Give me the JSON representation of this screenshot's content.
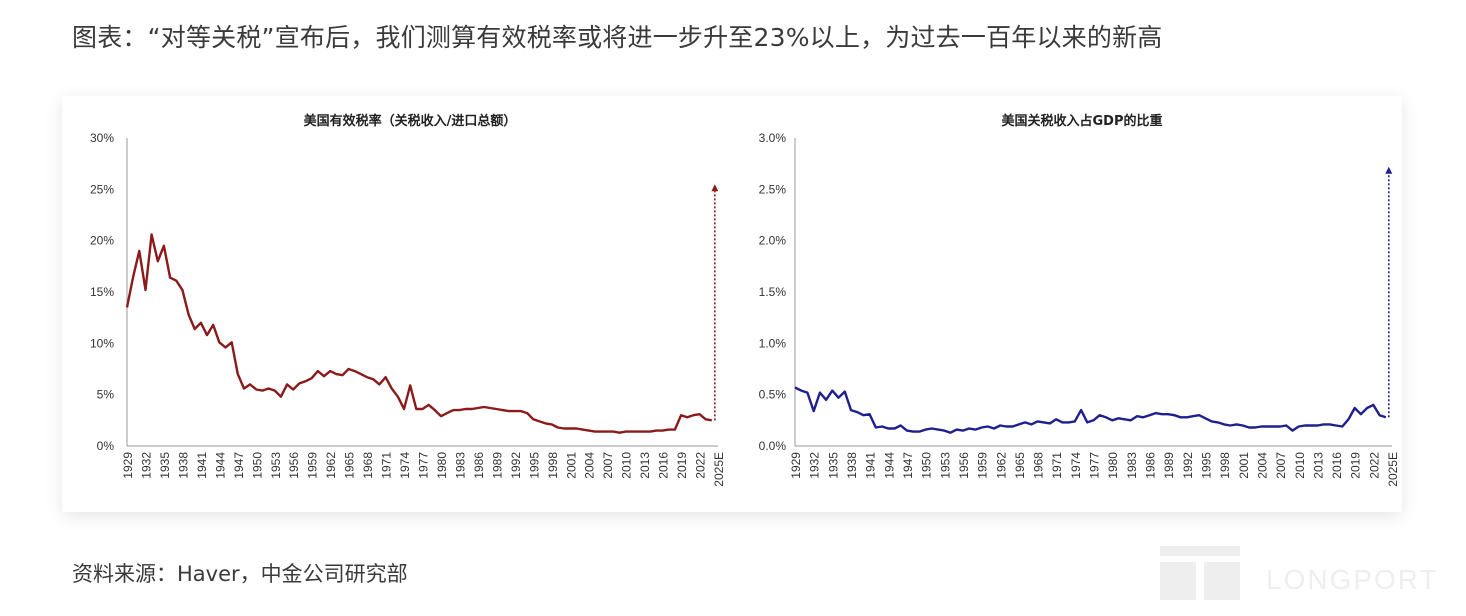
{
  "headline": "图表：“对等关税”宣布后，我们测算有效税率或将进一步升至23%以上，为过去一百年以来的新高",
  "source": "资料来源：Haver，中金公司研究部",
  "watermark_text": "LONGPORT",
  "chart_data": [
    {
      "type": "line",
      "title": "美国有效税率（关税收入/进口总额）",
      "color": "#8b1a1a",
      "ylim": [
        0,
        30
      ],
      "y_ticks": [
        "0%",
        "5%",
        "10%",
        "15%",
        "20%",
        "25%",
        "30%"
      ],
      "x_labels": [
        "1929",
        "1932",
        "1935",
        "1938",
        "1941",
        "1944",
        "1947",
        "1950",
        "1953",
        "1956",
        "1959",
        "1962",
        "1965",
        "1968",
        "1971",
        "1974",
        "1977",
        "1980",
        "1983",
        "1986",
        "1989",
        "1992",
        "1995",
        "1998",
        "2001",
        "2004",
        "2007",
        "2010",
        "2013",
        "2016",
        "2019",
        "2022",
        "2025E"
      ],
      "x": [
        1929,
        1930,
        1931,
        1932,
        1933,
        1934,
        1935,
        1936,
        1937,
        1938,
        1939,
        1940,
        1941,
        1942,
        1943,
        1944,
        1945,
        1946,
        1947,
        1948,
        1949,
        1950,
        1951,
        1952,
        1953,
        1954,
        1955,
        1956,
        1957,
        1958,
        1959,
        1960,
        1961,
        1962,
        1963,
        1964,
        1965,
        1966,
        1967,
        1968,
        1969,
        1970,
        1971,
        1972,
        1973,
        1974,
        1975,
        1976,
        1977,
        1978,
        1979,
        1980,
        1981,
        1982,
        1983,
        1984,
        1985,
        1986,
        1987,
        1988,
        1989,
        1990,
        1991,
        1992,
        1993,
        1994,
        1995,
        1996,
        1997,
        1998,
        1999,
        2000,
        2001,
        2002,
        2003,
        2004,
        2005,
        2006,
        2007,
        2008,
        2009,
        2010,
        2011,
        2012,
        2013,
        2014,
        2015,
        2016,
        2017,
        2018,
        2019,
        2020,
        2021,
        2022,
        2023,
        2024
      ],
      "values": [
        13.5,
        16.5,
        19.0,
        15.2,
        20.6,
        18.0,
        19.5,
        16.4,
        16.1,
        15.2,
        12.8,
        11.4,
        12.0,
        10.8,
        11.8,
        10.1,
        9.6,
        10.1,
        7.0,
        5.6,
        6.0,
        5.5,
        5.4,
        5.6,
        5.4,
        4.8,
        6.0,
        5.5,
        6.1,
        6.3,
        6.6,
        7.3,
        6.8,
        7.3,
        7.0,
        6.9,
        7.5,
        7.3,
        7.0,
        6.7,
        6.5,
        6.0,
        6.7,
        5.6,
        4.8,
        3.6,
        5.9,
        3.6,
        3.6,
        4.0,
        3.5,
        2.9,
        3.2,
        3.5,
        3.5,
        3.6,
        3.6,
        3.7,
        3.8,
        3.7,
        3.6,
        3.5,
        3.4,
        3.4,
        3.4,
        3.2,
        2.6,
        2.4,
        2.2,
        2.1,
        1.8,
        1.7,
        1.7,
        1.7,
        1.6,
        1.5,
        1.4,
        1.4,
        1.4,
        1.4,
        1.3,
        1.4,
        1.4,
        1.4,
        1.4,
        1.4,
        1.5,
        1.5,
        1.6,
        1.6,
        3.0,
        2.8,
        3.0,
        3.1,
        2.6,
        2.5
      ],
      "projection": {
        "label": "2025E",
        "value": 25.5
      }
    },
    {
      "type": "line",
      "title": "美国关税收入占GDP的比重",
      "color": "#1f1f8f",
      "ylim": [
        0,
        3
      ],
      "y_ticks": [
        "0.0%",
        "0.5%",
        "1.0%",
        "1.5%",
        "2.0%",
        "2.5%",
        "3.0%"
      ],
      "x_labels": [
        "1929",
        "1932",
        "1935",
        "1938",
        "1941",
        "1944",
        "1947",
        "1950",
        "1953",
        "1956",
        "1959",
        "1962",
        "1965",
        "1968",
        "1971",
        "1974",
        "1977",
        "1980",
        "1983",
        "1986",
        "1989",
        "1992",
        "1995",
        "1998",
        "2001",
        "2004",
        "2007",
        "2010",
        "2013",
        "2016",
        "2019",
        "2022",
        "2025E"
      ],
      "x": [
        1929,
        1930,
        1931,
        1932,
        1933,
        1934,
        1935,
        1936,
        1937,
        1938,
        1939,
        1940,
        1941,
        1942,
        1943,
        1944,
        1945,
        1946,
        1947,
        1948,
        1949,
        1950,
        1951,
        1952,
        1953,
        1954,
        1955,
        1956,
        1957,
        1958,
        1959,
        1960,
        1961,
        1962,
        1963,
        1964,
        1965,
        1966,
        1967,
        1968,
        1969,
        1970,
        1971,
        1972,
        1973,
        1974,
        1975,
        1976,
        1977,
        1978,
        1979,
        1980,
        1981,
        1982,
        1983,
        1984,
        1985,
        1986,
        1987,
        1988,
        1989,
        1990,
        1991,
        1992,
        1993,
        1994,
        1995,
        1996,
        1997,
        1998,
        1999,
        2000,
        2001,
        2002,
        2003,
        2004,
        2005,
        2006,
        2007,
        2008,
        2009,
        2010,
        2011,
        2012,
        2013,
        2014,
        2015,
        2016,
        2017,
        2018,
        2019,
        2020,
        2021,
        2022,
        2023,
        2024
      ],
      "values": [
        0.57,
        0.54,
        0.52,
        0.34,
        0.52,
        0.45,
        0.54,
        0.47,
        0.53,
        0.35,
        0.33,
        0.3,
        0.31,
        0.18,
        0.19,
        0.17,
        0.17,
        0.2,
        0.15,
        0.14,
        0.14,
        0.16,
        0.17,
        0.16,
        0.15,
        0.13,
        0.16,
        0.15,
        0.17,
        0.16,
        0.18,
        0.19,
        0.17,
        0.2,
        0.19,
        0.19,
        0.21,
        0.23,
        0.21,
        0.24,
        0.23,
        0.22,
        0.26,
        0.23,
        0.23,
        0.24,
        0.35,
        0.23,
        0.25,
        0.3,
        0.28,
        0.25,
        0.27,
        0.26,
        0.25,
        0.29,
        0.28,
        0.3,
        0.32,
        0.31,
        0.31,
        0.3,
        0.28,
        0.28,
        0.29,
        0.3,
        0.27,
        0.24,
        0.23,
        0.21,
        0.2,
        0.21,
        0.2,
        0.18,
        0.18,
        0.19,
        0.19,
        0.19,
        0.19,
        0.2,
        0.15,
        0.19,
        0.2,
        0.2,
        0.2,
        0.21,
        0.21,
        0.2,
        0.19,
        0.26,
        0.37,
        0.31,
        0.37,
        0.4,
        0.3,
        0.28
      ],
      "projection": {
        "label": "2025E",
        "value": 2.72
      }
    }
  ]
}
